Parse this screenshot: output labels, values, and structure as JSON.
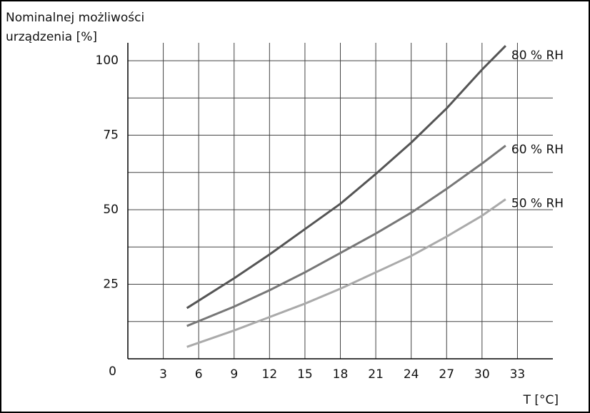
{
  "chart_data": {
    "type": "line",
    "ylabel": [
      "Nominalnej możliwości",
      "urządzenia  [%]"
    ],
    "xlabel": "T [°C]",
    "x": [
      5,
      9,
      12,
      15,
      18,
      21,
      24,
      27,
      30,
      32
    ],
    "series": [
      {
        "name": "80 % RH",
        "color": "#555555",
        "values": [
          17,
          27,
          35,
          43.5,
          52,
          62,
          72.5,
          84,
          97,
          105
        ]
      },
      {
        "name": "60 % RH",
        "color": "#777777",
        "values": [
          11,
          17.5,
          23,
          29,
          35.5,
          42,
          49,
          57,
          65.5,
          71.5
        ]
      },
      {
        "name": "50 % RH",
        "color": "#aaaaaa",
        "values": [
          4,
          9.5,
          14,
          18.5,
          23.5,
          29,
          34.5,
          41,
          48,
          53.5
        ]
      }
    ],
    "xlim": [
      0,
      36
    ],
    "ylim": [
      0,
      106
    ],
    "xticks": [
      3,
      6,
      9,
      12,
      15,
      18,
      21,
      24,
      27,
      30,
      33
    ],
    "yticks": [
      0,
      25,
      50,
      75,
      100
    ],
    "minor_yticks": [
      12.5,
      37.5,
      62.5,
      87.5
    ],
    "grid": true
  }
}
